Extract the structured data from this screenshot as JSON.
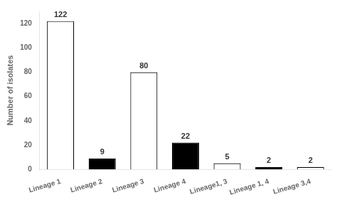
{
  "chart_data": {
    "type": "bar",
    "categories": [
      "Lineage 1",
      "Lineage 2",
      "Lineage 3",
      "Lineage 4",
      "Lineage1, 3",
      "Lineage 1, 4",
      "Lineage 3,4"
    ],
    "values": [
      122,
      9,
      80,
      22,
      5,
      2,
      2
    ],
    "colors": [
      "white",
      "black",
      "white",
      "black",
      "white",
      "black",
      "white"
    ],
    "ylabel": "Number of isolates",
    "ylim": [
      0,
      130
    ],
    "yticks": [
      0,
      20,
      40,
      60,
      80,
      100,
      120
    ],
    "grid": false,
    "data_labels": true
  }
}
